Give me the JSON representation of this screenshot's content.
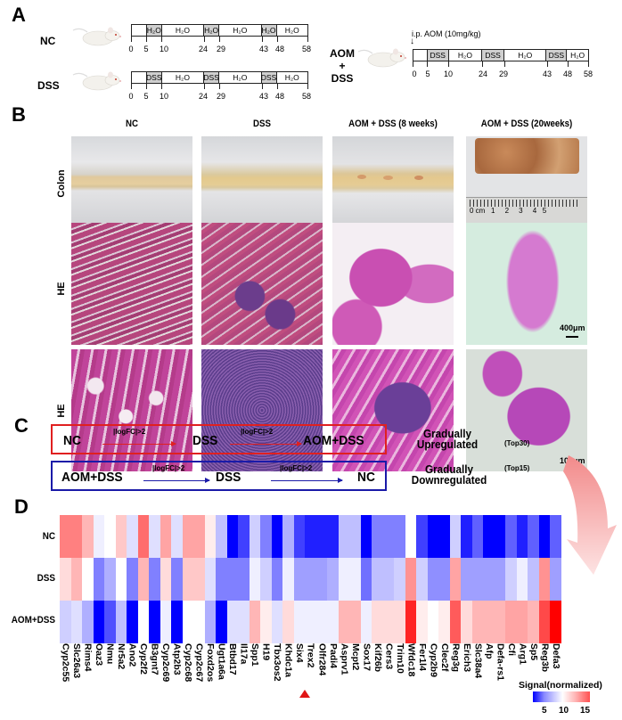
{
  "panels": {
    "A": {
      "letter": "A",
      "groups": [
        {
          "label": "NC",
          "segments": [
            "",
            "H₂O",
            "H₂O",
            "H₂O",
            "H₂O",
            "H₂O",
            "H₂O"
          ]
        },
        {
          "label": "DSS",
          "segments": [
            "",
            "DSS",
            "H₂O",
            "DSS",
            "H₂O",
            "DSS",
            "H₂O"
          ]
        },
        {
          "label_line1": "AOM",
          "label_line2": "+",
          "label_line3": "DSS",
          "segments": [
            "",
            "DSS",
            "H₂O",
            "DSS",
            "H₂O",
            "DSS",
            "H₂O"
          ],
          "injection_note": "i.p. AOM (10mg/kg)",
          "injection_arrow": "↓"
        }
      ],
      "days": [
        "0",
        "5",
        "10",
        "24",
        "29",
        "43",
        "48",
        "58"
      ]
    },
    "B": {
      "letter": "B",
      "columns": [
        "NC",
        "DSS",
        "AOM + DSS (8 weeks)",
        "AOM + DSS (20weeks)"
      ],
      "rows": [
        "Colon",
        "HE",
        "HE"
      ],
      "ruler_label": "0 cm   1     2     3     4   5",
      "scale_bar_1": "400μm",
      "scale_bar_2": "100μm"
    },
    "C": {
      "letter": "C",
      "up": {
        "nodes": [
          "NC",
          "DSS",
          "AOM+DSS"
        ],
        "arrow_label": "|logFC|>2",
        "desc_line1": "Gradually",
        "desc_line2": "Upregulated",
        "top": "(Top30)",
        "color": "#e02020"
      },
      "down": {
        "nodes": [
          "AOM+DSS",
          "DSS",
          "NC"
        ],
        "arrow_label": "|logFC|>2",
        "desc_line1": "Gradually",
        "desc_line2": "Downregulated",
        "top": "(Top15)",
        "color": "#1a1aa8"
      }
    },
    "D": {
      "letter": "D",
      "legend_title": "Signal(normalized)",
      "legend_ticks": [
        "5",
        "10",
        "15"
      ]
    }
  },
  "chart_data": {
    "type": "heatmap",
    "title": "",
    "rows": [
      "NC",
      "DSS",
      "AOM+DSS"
    ],
    "columns": [
      "Cyp2c55",
      "Slc26a3",
      "Rims4",
      "Oaz3",
      "Nmu",
      "Nr5a2",
      "Ano2",
      "Cyp2f2",
      "B3gnt7",
      "Cyp2c69",
      "Atp2b3",
      "Cyp2c68",
      "Cyp2c67",
      "Foxd2os",
      "Ugt1a6a",
      "Btbd17",
      "Il17a",
      "Spp1",
      "H19",
      "Tbx3os2",
      "Khdc1a",
      "Six4",
      "Trex2",
      "Olfr284",
      "Padi4",
      "Asprv1",
      "Mcpt2",
      "Sox17",
      "Kif26b",
      "Cers3",
      "Trim10",
      "Wfdc18",
      "Fer1l4",
      "Cyp2b9",
      "Clec2f",
      "Reg3g",
      "Erich3",
      "Slc38a4",
      "Afp",
      "Defa-rs1",
      "Cfi",
      "Arg1",
      "Sp5",
      "Reg3b",
      "Defa3"
    ],
    "highlighted_column": "Six4",
    "colorbar": {
      "label": "Signal(normalized)",
      "ticks": [
        5,
        10,
        15
      ],
      "range": [
        2,
        17
      ],
      "colors": [
        "#0000ff",
        "#ffffff",
        "#ff0000"
      ]
    },
    "values": [
      [
        13.5,
        13.5,
        12,
        9.5,
        10,
        11.5,
        9,
        14,
        9,
        12.5,
        9,
        12.5,
        12.5,
        10.5,
        8,
        2,
        4,
        8.5,
        6,
        2,
        7.5,
        4,
        3,
        3,
        3,
        8,
        8,
        2,
        6,
        6,
        6,
        10,
        4,
        2,
        2,
        8.5,
        3,
        5,
        2,
        2,
        5,
        3,
        5,
        2,
        5
      ],
      [
        11,
        12,
        10,
        6,
        7.5,
        10,
        6,
        12,
        6,
        11,
        6,
        11.5,
        11.5,
        9,
        6,
        6,
        6,
        9.5,
        8.5,
        6,
        9.5,
        7,
        7,
        7,
        7.5,
        9.5,
        9.5,
        5.5,
        8,
        8,
        8.5,
        13,
        8.5,
        6.5,
        6.5,
        12.5,
        7,
        7,
        7,
        7,
        8.5,
        9.5,
        8,
        13,
        7
      ],
      [
        8.5,
        9,
        7.5,
        2,
        4.5,
        8,
        2,
        10,
        2,
        9.5,
        2,
        10,
        10,
        7.5,
        2,
        9,
        9,
        12,
        10.5,
        9,
        11,
        9.5,
        9.5,
        9.5,
        9.5,
        12,
        12,
        9.5,
        11,
        11,
        11,
        16,
        10.5,
        10,
        10.5,
        14.5,
        11,
        12,
        12,
        12,
        12.5,
        12.5,
        12,
        15,
        17
      ]
    ]
  }
}
